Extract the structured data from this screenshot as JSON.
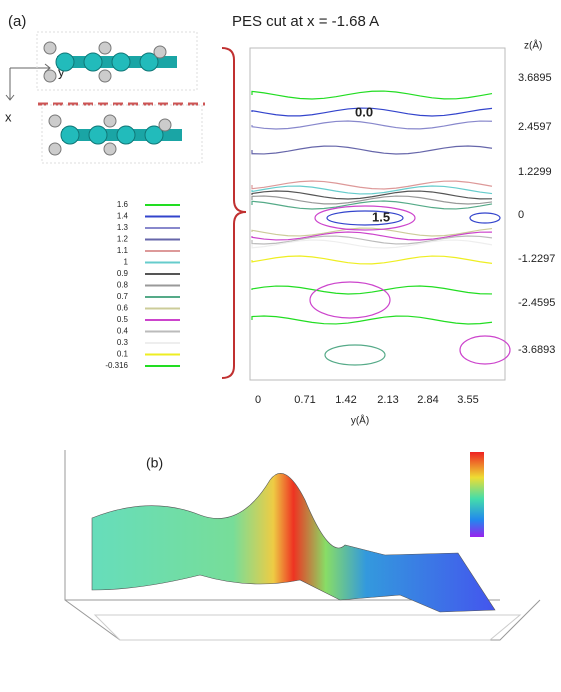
{
  "panel_a": {
    "label": "(a)",
    "title": "PES cut at x = -1.68 A",
    "axis_y": "y",
    "axis_x": "x",
    "z_axis_label": "z(Å)",
    "z_ticks": [
      "3.6895",
      "2.4597",
      "1.2299",
      "0",
      "-1.2297",
      "-2.4595",
      "-3.6893"
    ],
    "y_axis_label": "y(Å)",
    "y_ticks": [
      "0",
      "0.71",
      "1.42",
      "2.13",
      "2.84",
      "3.55"
    ],
    "contour_labels": [
      "0.0",
      "1.5"
    ],
    "legend": [
      {
        "label": "1.6",
        "color": "#22dd22"
      },
      {
        "label": "1.4",
        "color": "#3344cc"
      },
      {
        "label": "1.3",
        "color": "#8888cc"
      },
      {
        "label": "1.2",
        "color": "#6666aa"
      },
      {
        "label": "1.1",
        "color": "#dd9999"
      },
      {
        "label": "1",
        "color": "#66cccc"
      },
      {
        "label": "0.9",
        "color": "#555555"
      },
      {
        "label": "0.8",
        "color": "#999999"
      },
      {
        "label": "0.7",
        "color": "#55aa88"
      },
      {
        "label": "0.6",
        "color": "#cccc99"
      },
      {
        "label": "0.5",
        "color": "#cc44cc"
      },
      {
        "label": "0.4",
        "color": "#bbbbbb"
      },
      {
        "label": "0.3",
        "color": "#eeeeee"
      },
      {
        "label": "0.1",
        "color": "#eeee22"
      },
      {
        "label": "-0.316",
        "color": "#22dd22"
      }
    ]
  },
  "panel_b": {
    "label": "(b)"
  }
}
